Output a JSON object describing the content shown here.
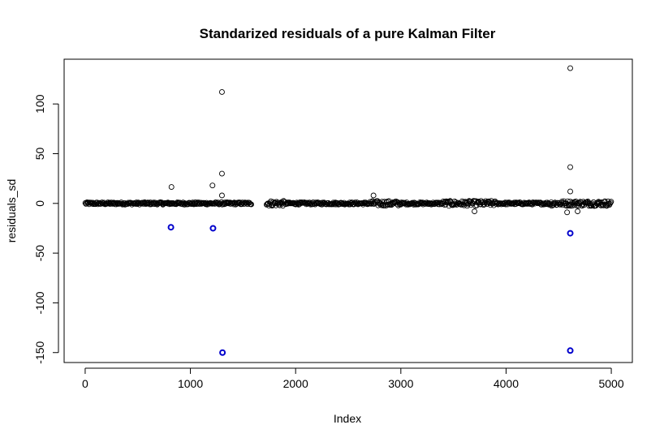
{
  "chart_data": {
    "type": "scatter",
    "title": "Standarized residuals of a pure Kalman Filter",
    "xlabel": "Index",
    "ylabel": "residuals_sd",
    "xlim": [
      -200,
      5200
    ],
    "ylim": [
      -160,
      145
    ],
    "xticks": [
      0,
      1000,
      2000,
      3000,
      4000,
      5000
    ],
    "yticks": [
      -150,
      -100,
      -50,
      0,
      50,
      100
    ],
    "grid": false,
    "legend": "none",
    "gap": [
      1580,
      1720
    ],
    "colors": {
      "main": "#000000",
      "highlight": "#0000cc"
    },
    "series": [
      {
        "marker": "open-circle",
        "color": "#000000",
        "outliers": [
          {
            "x": 820,
            "y": 16.5
          },
          {
            "x": 1210,
            "y": 18
          },
          {
            "x": 1300,
            "y": 112
          },
          {
            "x": 1300,
            "y": 30
          },
          {
            "x": 1300,
            "y": 8
          },
          {
            "x": 2740,
            "y": 8
          },
          {
            "x": 3700,
            "y": -8
          },
          {
            "x": 4610,
            "y": 136
          },
          {
            "x": 4610,
            "y": 36.5
          },
          {
            "x": 4610,
            "y": 12
          },
          {
            "x": 4580,
            "y": -9
          },
          {
            "x": 4680,
            "y": -8
          }
        ]
      },
      {
        "marker": "open-circle-bold",
        "color": "#0000cc",
        "values": [
          {
            "x": 815,
            "y": -24
          },
          {
            "x": 1215,
            "y": -25
          },
          {
            "x": 1305,
            "y": -150
          },
          {
            "x": 4610,
            "y": -30
          },
          {
            "x": 4610,
            "y": -148
          }
        ]
      }
    ]
  }
}
